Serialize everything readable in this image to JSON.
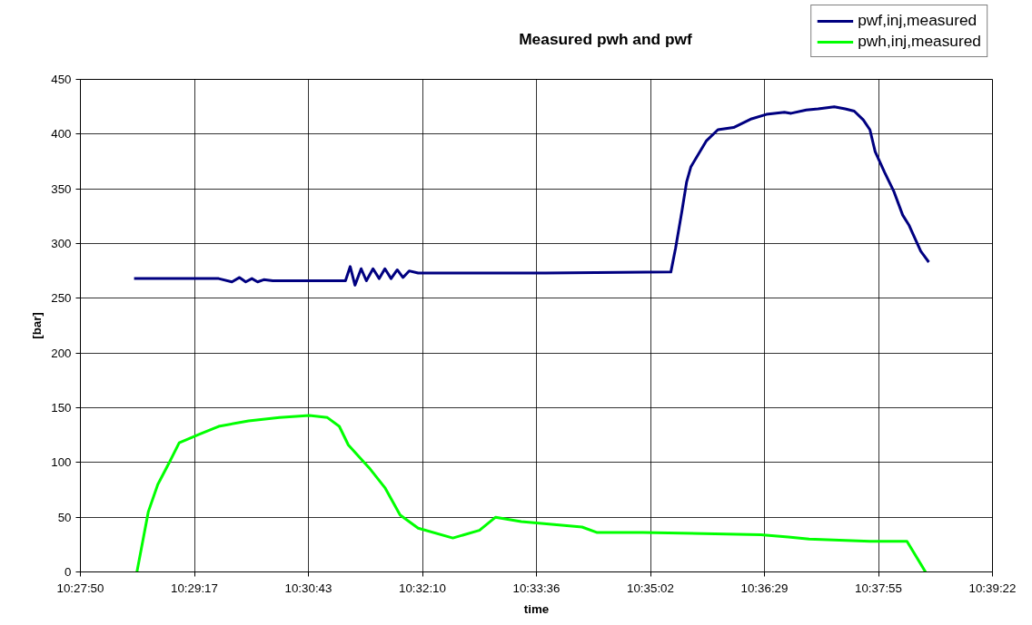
{
  "chart_data": {
    "type": "line",
    "title": "Measured pwh and pwf",
    "xlabel": "time",
    "ylabel": "[bar]",
    "xlim": [
      10.464,
      10.656
    ],
    "xticks": [
      {
        "value": 10.464,
        "label": "10:27:50"
      },
      {
        "value": 10.488,
        "label": "10:29:17"
      },
      {
        "value": 10.512,
        "label": "10:30:43"
      },
      {
        "value": 10.536,
        "label": "10:32:10"
      },
      {
        "value": 10.56,
        "label": "10:33:36"
      },
      {
        "value": 10.584,
        "label": "10:35:02"
      },
      {
        "value": 10.608,
        "label": "10:36:29"
      },
      {
        "value": 10.632,
        "label": "10:37:55"
      },
      {
        "value": 10.656,
        "label": "10:39:22"
      }
    ],
    "ylim": [
      0,
      450
    ],
    "yticks": [
      0,
      50,
      100,
      150,
      200,
      250,
      300,
      350,
      400,
      450
    ],
    "grid": true,
    "legend": "top right",
    "series": [
      {
        "name": "pwf,inj,measured",
        "color": "#000080",
        "x": [
          10.4753,
          10.4931,
          10.4959,
          10.4975,
          10.4988,
          10.5001,
          10.5013,
          10.5026,
          10.5045,
          10.5198,
          10.5208,
          10.5218,
          10.5231,
          10.5242,
          10.5256,
          10.5269,
          10.5281,
          10.5294,
          10.5307,
          10.5319,
          10.5332,
          10.5351,
          10.5619,
          10.5883,
          10.5893,
          10.5906,
          10.5916,
          10.5925,
          10.5958,
          10.5982,
          10.6015,
          10.6053,
          10.6084,
          10.6122,
          10.6136,
          10.6168,
          10.6193,
          10.6227,
          10.625,
          10.6269,
          10.6288,
          10.6302,
          10.6313,
          10.6333,
          10.6352,
          10.6371,
          10.6384,
          10.6409,
          10.6426
        ],
        "values": [
          268,
          268,
          265,
          269,
          265,
          268,
          265,
          267,
          266,
          266,
          279,
          262,
          277,
          266,
          277,
          268,
          277,
          268,
          276,
          269,
          275,
          273,
          273,
          274,
          296,
          329,
          356,
          370,
          394,
          404,
          406,
          414,
          418,
          420,
          419,
          422,
          423,
          425,
          423,
          421,
          413,
          404,
          384,
          365,
          348,
          326,
          317,
          293,
          283
        ]
      },
      {
        "name": "pwh,inj,measured",
        "color": "#00ff00",
        "x": [
          10.4759,
          10.4783,
          10.4803,
          10.4826,
          10.4848,
          10.4892,
          10.4931,
          10.4994,
          10.5059,
          10.5122,
          10.516,
          10.5185,
          10.5204,
          10.525,
          10.5281,
          10.5313,
          10.5351,
          10.5424,
          10.548,
          10.5514,
          10.5568,
          10.5696,
          10.5728,
          10.5824,
          10.6072,
          10.613,
          10.6174,
          10.6302,
          10.638,
          10.6419
        ],
        "values": [
          0,
          55,
          80,
          99,
          118,
          126,
          133,
          138,
          141,
          143,
          141,
          133,
          116,
          94,
          77,
          52,
          40,
          31,
          38,
          50,
          46,
          41,
          36,
          36,
          34,
          32,
          30,
          28,
          28,
          0
        ]
      }
    ]
  }
}
